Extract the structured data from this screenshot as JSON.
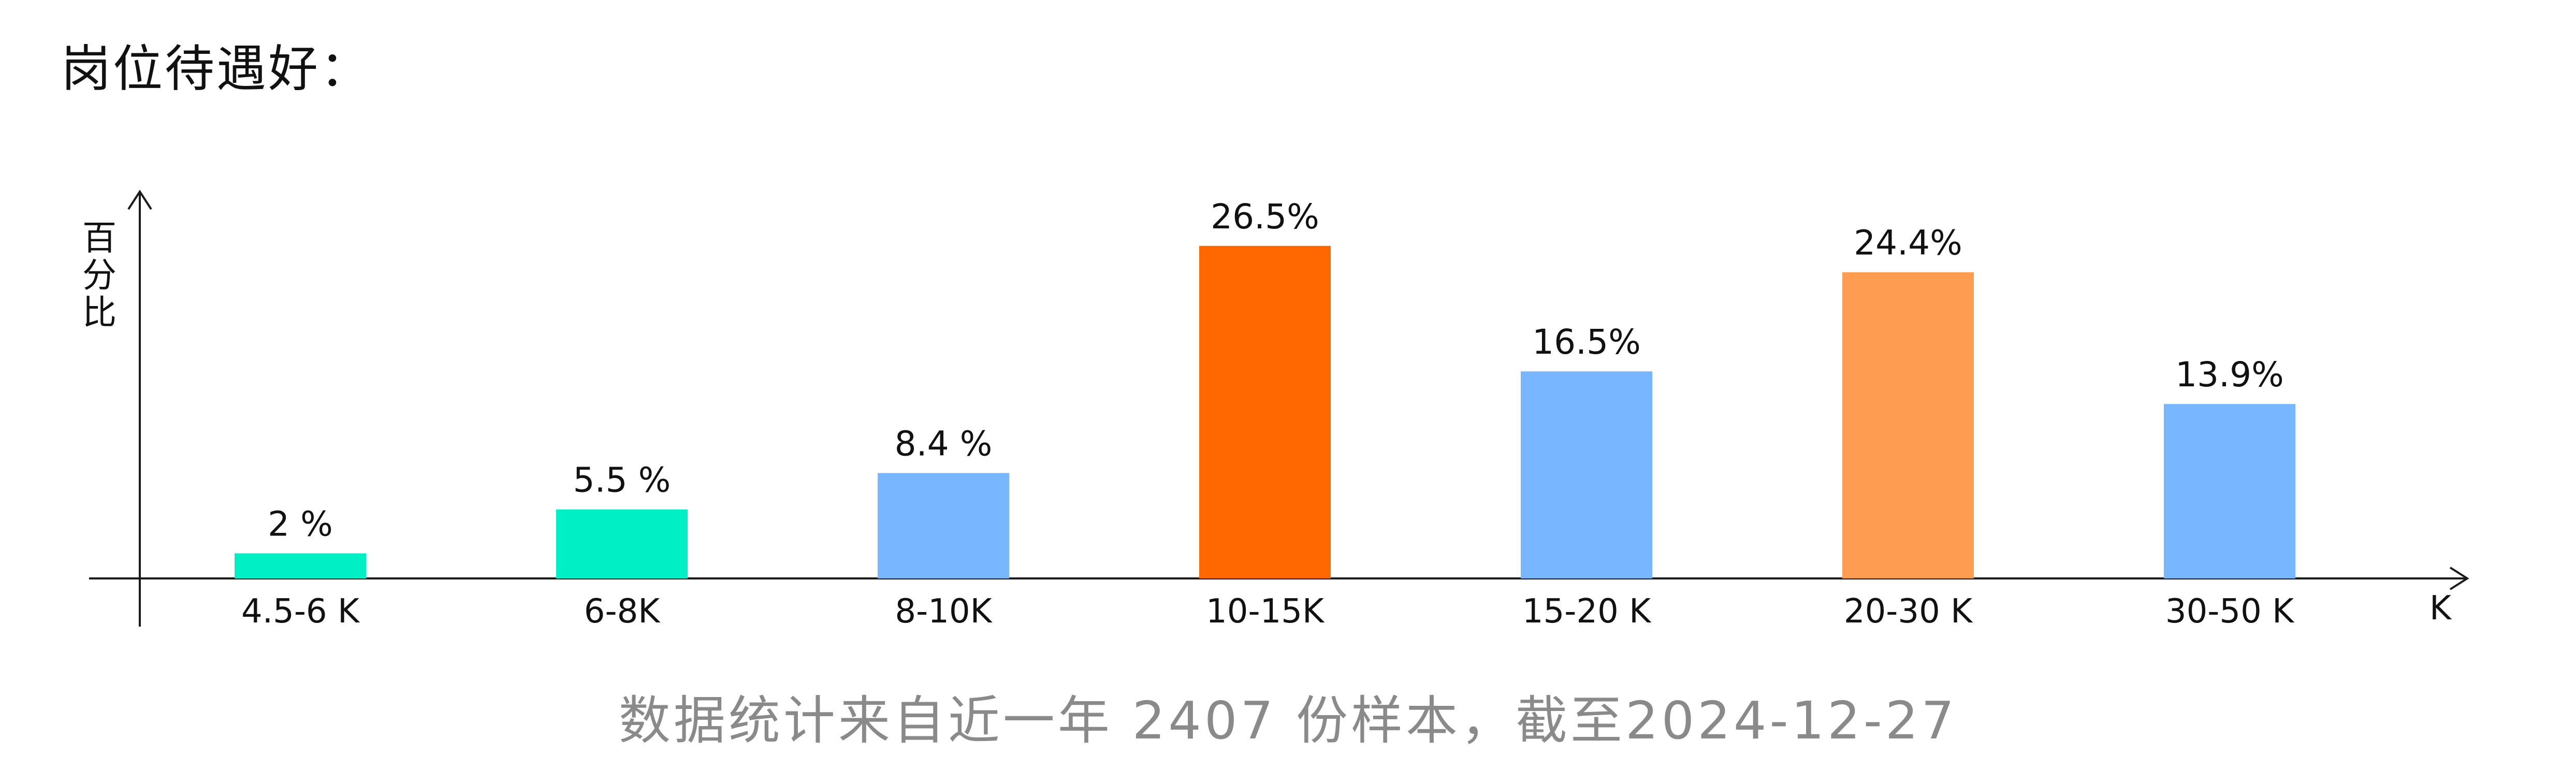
{
  "page": {
    "title": "岗位待遇好：",
    "footnote": "数据统计来自近一年 2407 份样本，截至2024-12-27"
  },
  "chart_data": {
    "type": "bar",
    "title": "岗位待遇好：",
    "ylabel": "百分比",
    "xlabel": "K",
    "categories": [
      "4.5-6 K",
      "6-8K",
      "8-10K",
      "10-15K",
      "15-20 K",
      "20-30 K",
      "30-50 K"
    ],
    "values": [
      2,
      5.5,
      8.4,
      26.5,
      16.5,
      24.4,
      13.9
    ],
    "value_labels": [
      "2 %",
      "5.5 %",
      "8.4 %",
      "26.5%",
      "16.5%",
      "24.4%",
      "13.9%"
    ],
    "bar_colors": [
      "#00efc4",
      "#00efc4",
      "#78b7ff",
      "#ff6700",
      "#78b7ff",
      "#fe9d52",
      "#78b7ff"
    ],
    "ylim": [
      0,
      30
    ],
    "grid": false,
    "legend": "none"
  },
  "colors": {
    "axis": "#1a1a1a",
    "label_text": "#111111",
    "footnote_text": "#8a8a8a"
  }
}
